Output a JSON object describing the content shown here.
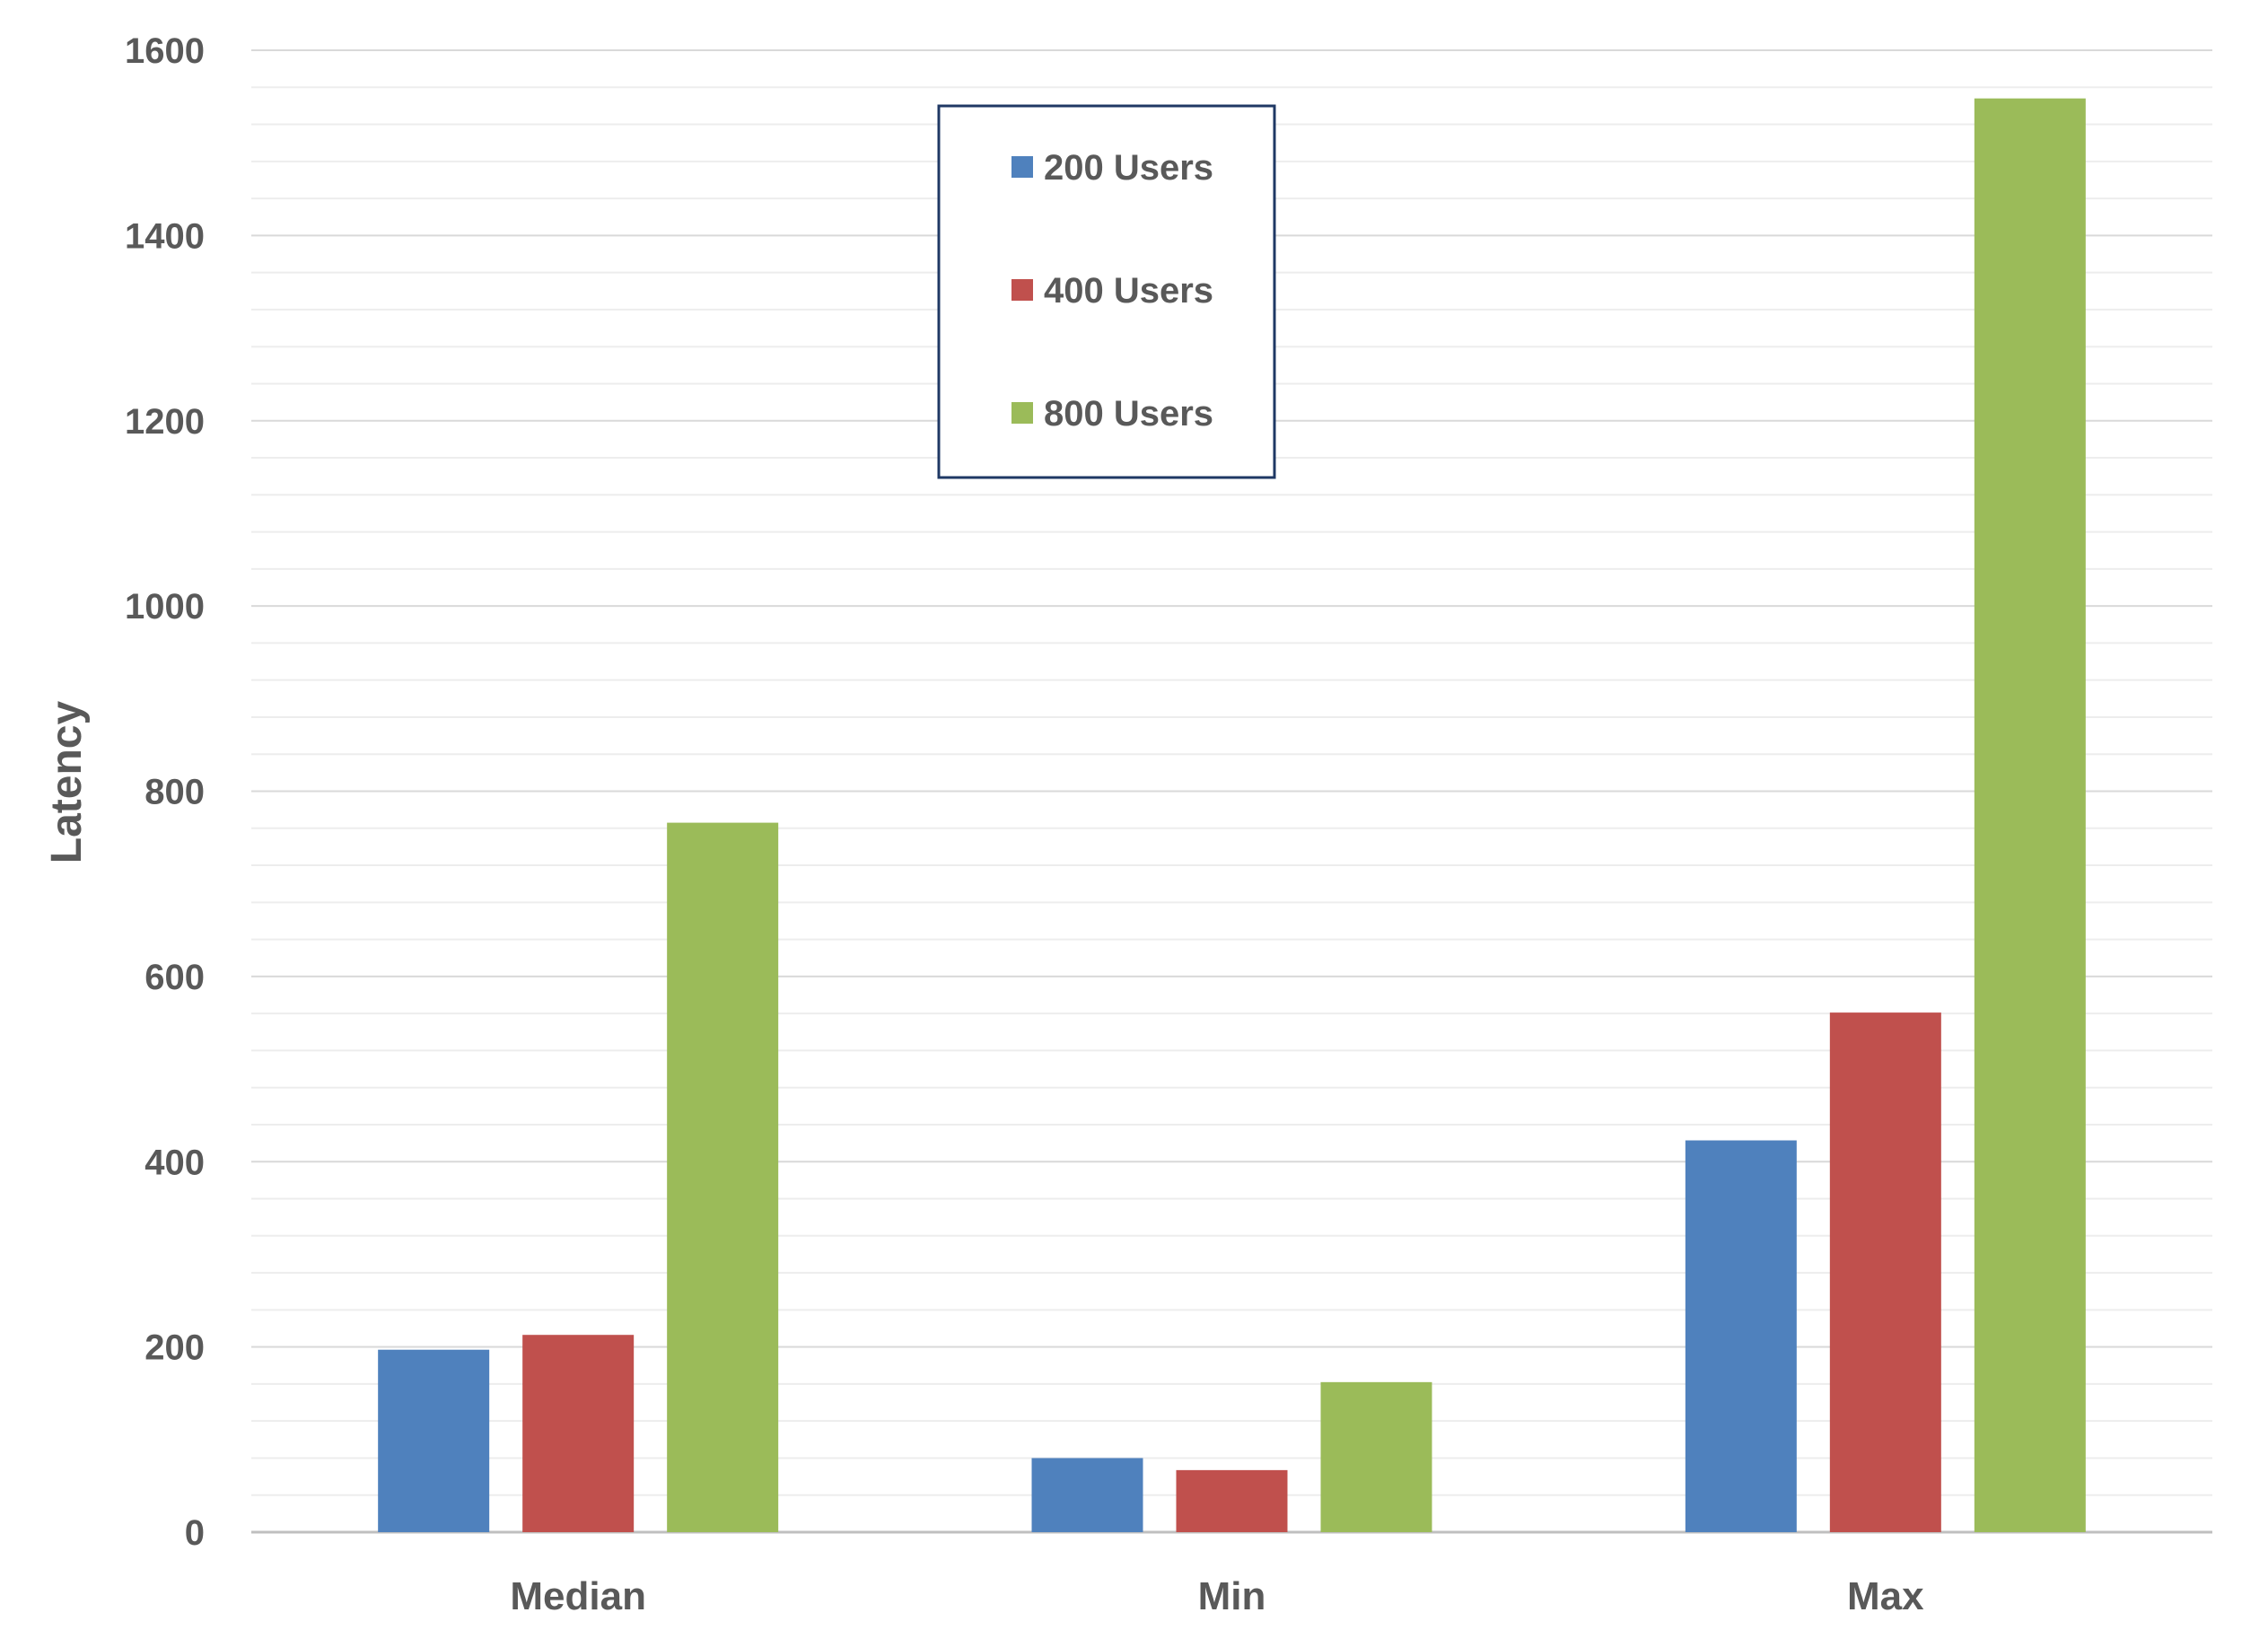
{
  "chart_data": {
    "type": "bar",
    "title": "",
    "xlabel": "",
    "ylabel": "Latency",
    "ylim": [
      0,
      1600
    ],
    "yticks": [
      "0",
      "200",
      "400",
      "600",
      "800",
      "1000",
      "1200",
      "1400",
      "1600"
    ],
    "categories": [
      "Median",
      "Min",
      "Max"
    ],
    "series": [
      {
        "name": "200 Users",
        "color": "#4F81BD",
        "values": [
          197,
          80,
          423
        ]
      },
      {
        "name": "400 Users",
        "color": "#C0504D",
        "values": [
          213,
          67,
          561
        ]
      },
      {
        "name": "800 Users",
        "color": "#9BBB59",
        "values": [
          766,
          162,
          1548
        ]
      }
    ],
    "grid": true,
    "minor_grid": true,
    "legend_position": "top-center, boxed"
  }
}
